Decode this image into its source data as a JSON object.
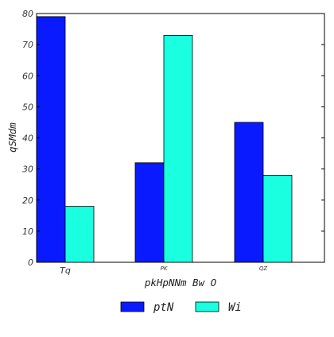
{
  "chart_data": {
    "type": "bar",
    "title": "",
    "xlabel": "pkHpNNm Bw O",
    "ylabel": "qSMdm",
    "categories": [
      "Tq",
      "PK",
      "QZ"
    ],
    "ylim": [
      0,
      80
    ],
    "yticks": [
      0,
      10,
      20,
      30,
      40,
      50,
      60,
      70,
      80
    ],
    "grid": false,
    "legend_position": "bottom",
    "series": [
      {
        "name": "ptN",
        "color": "#0a1aff",
        "values": [
          79,
          32,
          45
        ]
      },
      {
        "name": "Wi",
        "color": "#1affe0",
        "values": [
          18,
          73,
          28
        ]
      }
    ]
  }
}
